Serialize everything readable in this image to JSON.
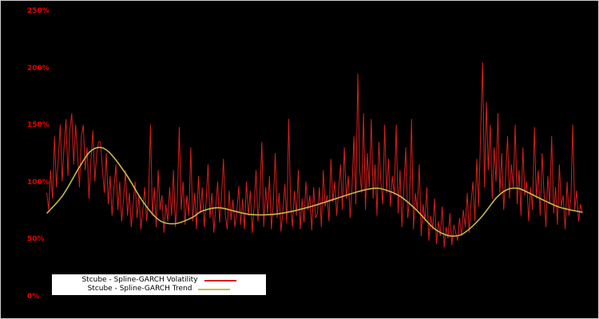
{
  "figure": {
    "background": "#000000",
    "border_color": "#cfcfcf"
  },
  "chart_data": {
    "type": "line",
    "title": "",
    "xlabel": "",
    "ylabel": "",
    "ylim": [
      0,
      250
    ],
    "grid": false,
    "yticks": [
      0,
      50,
      100,
      150,
      200,
      250
    ],
    "ytick_labels": [
      "0%",
      "50%",
      "100%",
      "150%",
      "200%",
      "250%"
    ],
    "tick_label_color": "#ee0000",
    "legend": {
      "position": "bottom-left",
      "background": "#ffffff",
      "text_color": "#000000"
    },
    "series": [
      {
        "name": "Stcube - Spline-GARCH Volatility",
        "color": "#d91e1e",
        "style": "noisy-line",
        "x_range_percent": [
          0,
          100
        ],
        "values": [
          90,
          75,
          110,
          85,
          140,
          95,
          120,
          150,
          100,
          130,
          155,
          105,
          145,
          160,
          115,
          150,
          125,
          95,
          140,
          150,
          110,
          130,
          85,
          120,
          145,
          100,
          125,
          135,
          135,
          110,
          90,
          125,
          80,
          105,
          70,
          95,
          115,
          75,
          100,
          65,
          85,
          110,
          70,
          90,
          60,
          80,
          100,
          68,
          88,
          58,
          75,
          95,
          65,
          85,
          150,
          70,
          95,
          60,
          110,
          75,
          88,
          55,
          80,
          65,
          95,
          70,
          110,
          60,
          85,
          148,
          75,
          100,
          62,
          88,
          70,
          130,
          65,
          90,
          58,
          105,
          72,
          95,
          60,
          82,
          115,
          68,
          90,
          55,
          78,
          100,
          64,
          86,
          120,
          70,
          58,
          92,
          66,
          84,
          60,
          75,
          96,
          62,
          85,
          58,
          100,
          70,
          92,
          55,
          78,
          110,
          65,
          88,
          135,
          60,
          95,
          72,
          105,
          58,
          82,
          125,
          68,
          90,
          56,
          74,
          98,
          63,
          155,
          80,
          60,
          92,
          70,
          110,
          58,
          85,
          64,
          100,
          75,
          88,
          57,
          95,
          68,
          72,
          95,
          60,
          110,
          78,
          88,
          65,
          120,
          82,
          100,
          70,
          92,
          115,
          75,
          130,
          85,
          105,
          68,
          95,
          140,
          80,
          195,
          110,
          90,
          160,
          75,
          125,
          95,
          155,
          85,
          115,
          70,
          135,
          100,
          80,
          150,
          90,
          120,
          78,
          105,
          88,
          150,
          72,
          110,
          60,
          95,
          130,
          68,
          85,
          155,
          58,
          90,
          75,
          115,
          52,
          80,
          65,
          95,
          48,
          70,
          58,
          85,
          45,
          65,
          52,
          78,
          42,
          60,
          50,
          72,
          44,
          62,
          55,
          48,
          68,
          52,
          75,
          60,
          90,
          55,
          82,
          100,
          65,
          120,
          78,
          145,
          205,
          95,
          170,
          110,
          150,
          85,
          130,
          100,
          160,
          90,
          125,
          75,
          105,
          140,
          85,
          115,
          95,
          150,
          80,
          110,
          70,
          130,
          88,
          100,
          65,
          95,
          75,
          148,
          85,
          110,
          70,
          125,
          90,
          60,
          105,
          80,
          140,
          72,
          95,
          62,
          115,
          78,
          88,
          58,
          100,
          70,
          85,
          150,
          75,
          92,
          65,
          80,
          72
        ]
      },
      {
        "name": "Stcube - Spline-GARCH Trend",
        "color": "#c8bb4b",
        "style": "smooth-line",
        "control_points": [
          [
            0,
            72
          ],
          [
            3,
            88
          ],
          [
            6,
            112
          ],
          [
            8,
            126
          ],
          [
            10,
            130
          ],
          [
            12,
            124
          ],
          [
            15,
            105
          ],
          [
            18,
            82
          ],
          [
            21,
            66
          ],
          [
            24,
            63
          ],
          [
            27,
            68
          ],
          [
            29,
            74
          ],
          [
            32,
            77
          ],
          [
            35,
            74
          ],
          [
            38,
            71
          ],
          [
            42,
            71
          ],
          [
            46,
            74
          ],
          [
            50,
            79
          ],
          [
            54,
            85
          ],
          [
            58,
            91
          ],
          [
            61,
            94
          ],
          [
            63,
            93
          ],
          [
            66,
            87
          ],
          [
            69,
            75
          ],
          [
            72,
            60
          ],
          [
            74,
            54
          ],
          [
            76,
            52
          ],
          [
            78,
            55
          ],
          [
            81,
            68
          ],
          [
            84,
            86
          ],
          [
            86,
            93
          ],
          [
            88,
            94
          ],
          [
            90,
            90
          ],
          [
            93,
            83
          ],
          [
            96,
            77
          ],
          [
            100,
            73
          ]
        ]
      }
    ]
  }
}
